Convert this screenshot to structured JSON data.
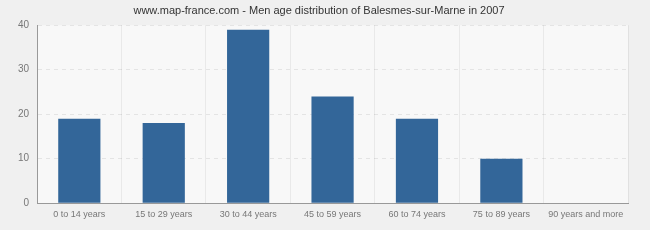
{
  "chart_data": {
    "type": "bar",
    "title": "www.map-france.com - Men age distribution of Balesmes-sur-Marne in 2007",
    "categories": [
      "0 to 14 years",
      "15 to 29 years",
      "30 to 44 years",
      "45 to 59 years",
      "60 to 74 years",
      "75 to 89 years",
      "90 years and more"
    ],
    "values": [
      19,
      18,
      39,
      24,
      19,
      10,
      0
    ],
    "color": "#336699",
    "ylim": [
      0,
      40
    ],
    "yticks": [
      0,
      10,
      20,
      30,
      40
    ],
    "grid": true
  }
}
